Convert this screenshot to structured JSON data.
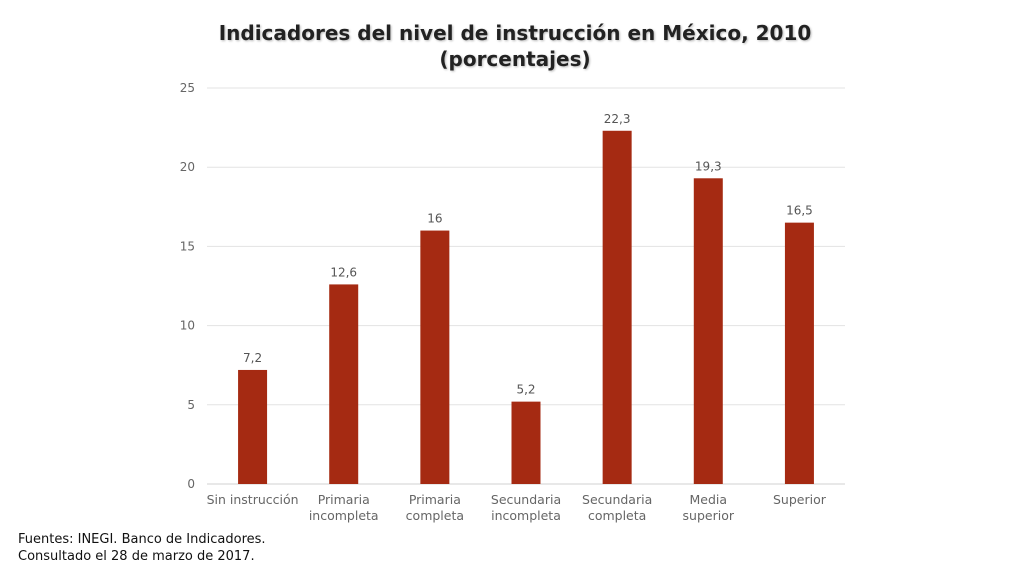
{
  "chart_data": {
    "type": "bar",
    "title": [
      "Indicadores del nivel de instrucción en México, 2010",
      "(porcentajes)"
    ],
    "categories": [
      [
        "Sin instrucción"
      ],
      [
        "Primaria",
        "incompleta"
      ],
      [
        "Primaria",
        "completa"
      ],
      [
        "Secundaria",
        "incompleta"
      ],
      [
        "Secundaria",
        "completa"
      ],
      [
        "Media",
        "superior"
      ],
      [
        "Superior"
      ]
    ],
    "values": [
      7.2,
      12.6,
      16,
      5.2,
      22.3,
      19.3,
      16.5
    ],
    "value_labels": [
      "7,2",
      "12,6",
      "16",
      "5,2",
      "22,3",
      "19,3",
      "16,5"
    ],
    "ylim": [
      0,
      25
    ],
    "yticks": [
      0,
      5,
      10,
      15,
      20,
      25
    ],
    "grid": true,
    "legend": "none",
    "bar_color": "#A52A12"
  },
  "source": {
    "line1": "Fuentes: INEGI. Banco de Indicadores.",
    "line2": "Consultado el 28 de marzo de 2017."
  }
}
